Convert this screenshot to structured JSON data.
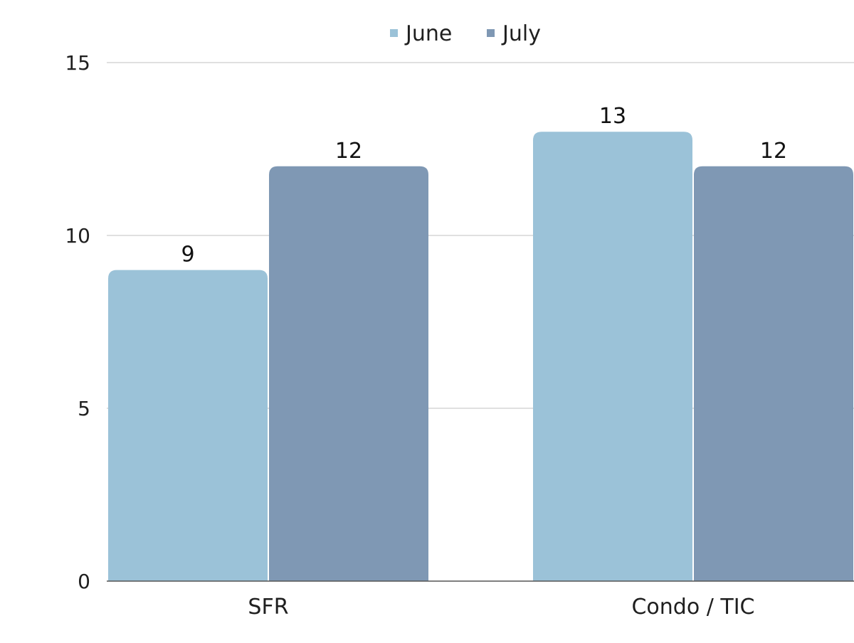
{
  "chart_data": {
    "type": "bar",
    "title": "",
    "xlabel": "",
    "ylabel": "",
    "categories": [
      "SFR",
      "Condo / TIC"
    ],
    "series": [
      {
        "name": "June",
        "values": [
          9,
          13
        ],
        "color": "#9bc2d8"
      },
      {
        "name": "July",
        "values": [
          12,
          12
        ],
        "color": "#7f98b4"
      }
    ],
    "ylim": [
      0,
      15
    ],
    "yticks": [
      0,
      5,
      10,
      15
    ],
    "grid": true,
    "legend_position": "top-center",
    "data_labels": true
  }
}
